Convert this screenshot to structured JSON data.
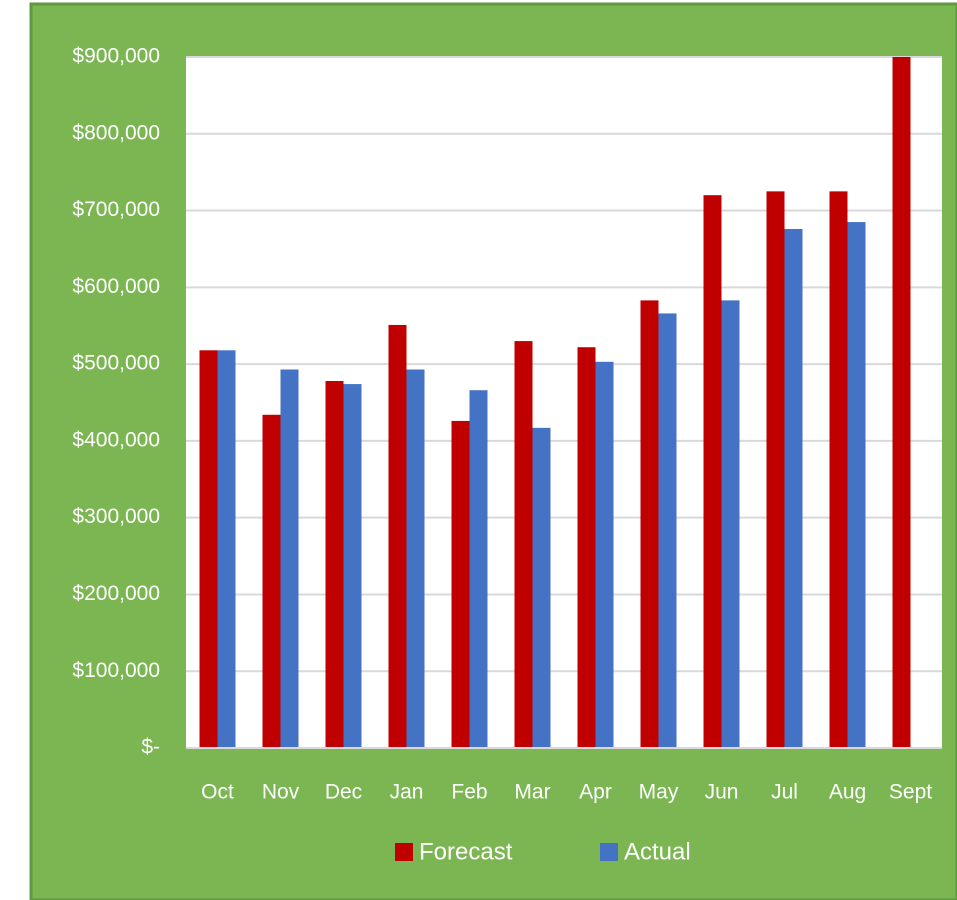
{
  "chart_data": {
    "type": "bar",
    "categories": [
      "Oct",
      "Nov",
      "Dec",
      "Jan",
      "Feb",
      "Mar",
      "Apr",
      "May",
      "Jun",
      "Jul",
      "Aug",
      "Sept"
    ],
    "series": [
      {
        "name": "Forecast",
        "color": "#c00000",
        "values": [
          518000,
          434000,
          478000,
          551000,
          426000,
          530000,
          522000,
          583000,
          720000,
          725000,
          725000,
          900000
        ]
      },
      {
        "name": "Actual",
        "color": "#4472c4",
        "values": [
          518000,
          493000,
          474000,
          493000,
          466000,
          417000,
          503000,
          566000,
          583000,
          676000,
          685000,
          null
        ]
      }
    ],
    "ylim": [
      0,
      900000
    ],
    "yticks": [
      {
        "value": 0,
        "label": "$-"
      },
      {
        "value": 100000,
        "label": "$100,000"
      },
      {
        "value": 200000,
        "label": "$200,000"
      },
      {
        "value": 300000,
        "label": "$300,000"
      },
      {
        "value": 400000,
        "label": "$400,000"
      },
      {
        "value": 500000,
        "label": "$500,000"
      },
      {
        "value": 600000,
        "label": "$600,000"
      },
      {
        "value": 700000,
        "label": "$700,000"
      },
      {
        "value": 800000,
        "label": "$800,000"
      },
      {
        "value": 900000,
        "label": "$900,000"
      }
    ],
    "grid": true,
    "legend": "bottom"
  }
}
